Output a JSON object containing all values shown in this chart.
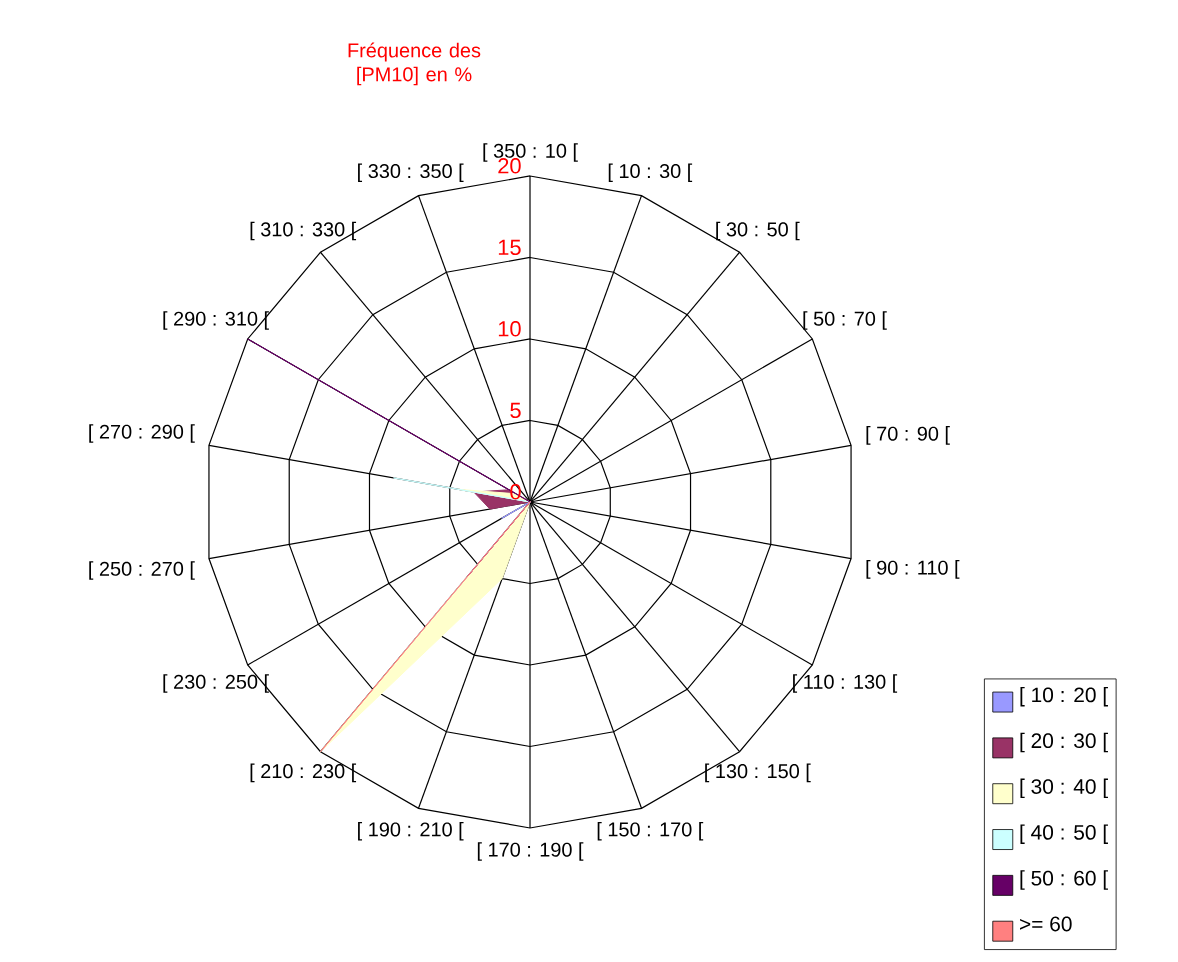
{
  "chart_data": {
    "type": "radar",
    "title": "Fréquence des [PM10] en %",
    "categories": [
      "[ 350 : 10 [",
      "[ 10 : 30 [",
      "[ 30 : 50 [",
      "[ 50 : 70 [",
      "[ 70 : 90 [",
      "[ 90 : 110 [",
      "[ 110 : 130 [",
      "[ 130 : 150 [",
      "[ 150 : 170 [",
      "[ 170 : 190 [",
      "[ 190 : 210 [",
      "[ 210 : 230 [",
      "[ 230 : 250 [",
      "[ 250 : 270 [",
      "[ 270 : 290 [",
      "[ 290 : 310 [",
      "[ 310 : 330 [",
      "[ 330 : 350 ["
    ],
    "series": [
      {
        "name": "[ 10 : 20 [",
        "color": "#9999ff",
        "values": [
          0,
          0,
          0,
          0,
          0,
          0,
          0,
          0,
          0,
          0,
          0,
          0,
          2,
          0,
          0,
          0,
          0,
          0
        ]
      },
      {
        "name": "[ 20 : 30 [",
        "color": "#993366",
        "values": [
          0,
          0,
          0,
          0,
          0,
          0,
          0,
          0,
          0,
          0,
          0,
          0,
          0,
          2.5,
          3.5,
          1.5,
          0,
          0
        ]
      },
      {
        "name": "[ 30 : 40 [",
        "color": "#ffffcc",
        "values": [
          0,
          0,
          0,
          0,
          0,
          0,
          0,
          0,
          0,
          0,
          5,
          20,
          0,
          0,
          4.5,
          1,
          0,
          0
        ]
      },
      {
        "name": "[ 40 : 50 [",
        "color": "#ccffff",
        "values": [
          0,
          0,
          0,
          0,
          0,
          0,
          0,
          0,
          0,
          0,
          0,
          12,
          0,
          0,
          8.5,
          0,
          0,
          0
        ]
      },
      {
        "name": "[ 50 : 60 [",
        "color": "#660066",
        "values": [
          0,
          0,
          0,
          0,
          0,
          0,
          0,
          0,
          0,
          0,
          0,
          6,
          0,
          0,
          0,
          20,
          0,
          0
        ]
      },
      {
        "name": ">= 60",
        "color": "#ff8080",
        "values": [
          0,
          0,
          0,
          0,
          0,
          0,
          0,
          0,
          0,
          0,
          0,
          20,
          0,
          0,
          0,
          0,
          0,
          0
        ]
      }
    ],
    "ylim": [
      0,
      20
    ],
    "yticks": [
      0,
      5,
      10,
      15,
      20
    ],
    "grid": true,
    "legend": "bottom right",
    "marker": "none"
  }
}
